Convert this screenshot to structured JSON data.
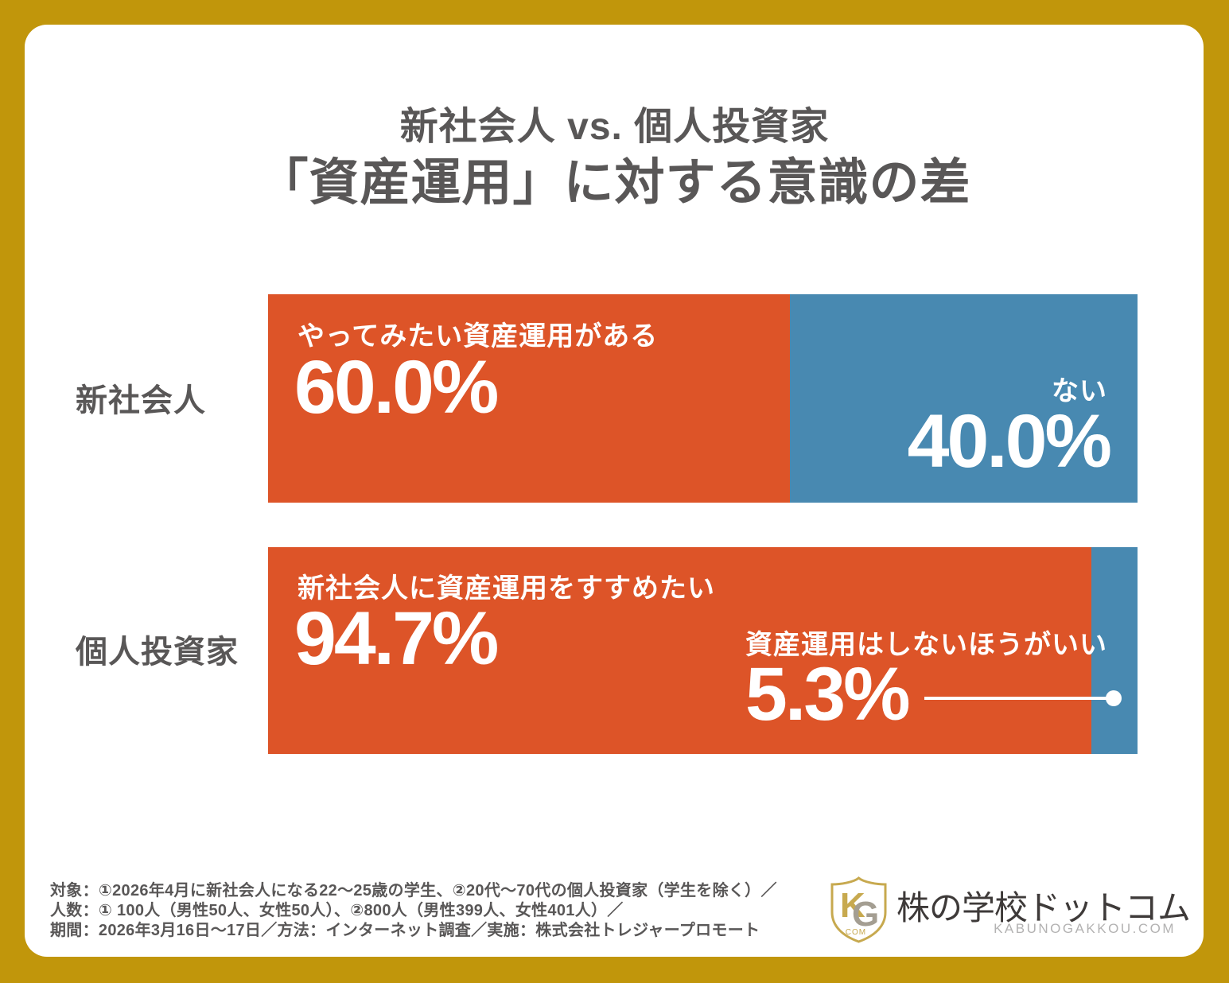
{
  "title": {
    "line1": "新社会人 vs. 個人投資家",
    "line2": "「資産運用」に対する意識の差"
  },
  "colors": {
    "frame_gold": "#C1960B",
    "card_white": "#FFFFFF",
    "orange": "#DD5428",
    "blue": "#4889B1",
    "dark_text": "#595757",
    "bar_text": "#FFFFFF",
    "logo_text": "#3E3A39",
    "logo_domain_gray": "#B3B2B2",
    "shield_gold": "#C7A94F"
  },
  "rows": [
    {
      "category": "新社会人",
      "positive": {
        "label": "やってみたい資産運用がある",
        "value": "60.0%",
        "pct": 60.0
      },
      "negative": {
        "label": "ない",
        "value": "40.0%",
        "pct": 40.0
      }
    },
    {
      "category": "個人投資家",
      "positive": {
        "label": "新社会人に資産運用をすすめたい",
        "value": "94.7%",
        "pct": 94.7
      },
      "negative": {
        "label": "資産運用はしないほうがいい",
        "value": "5.3%",
        "pct": 5.3
      }
    }
  ],
  "chart_data": {
    "type": "bar",
    "orientation": "horizontal",
    "stacked": true,
    "unit": "%",
    "title": "新社会人 vs. 個人投資家 「資産運用」に対する意識の差",
    "categories": [
      "新社会人",
      "個人投資家"
    ],
    "series": [
      {
        "name": "やってみたい資産運用がある／新社会人に資産運用をすすめたい",
        "color": "#DD5428",
        "values": [
          60.0,
          94.7
        ]
      },
      {
        "name": "ない／資産運用はしないほうがいい",
        "color": "#4889B1",
        "values": [
          40.0,
          5.3
        ]
      }
    ],
    "value_labels": [
      [
        "60.0%",
        "40.0%"
      ],
      [
        "94.7%",
        "5.3%"
      ]
    ],
    "xlim": [
      0,
      100
    ],
    "grid": false,
    "legend": "none"
  },
  "footnote": {
    "line1": "対象：①2026年4月に新社会人になる22〜25歳の学生、②20代〜70代の個人投資家（学生を除く）／",
    "line2": "人数：① 100人（男性50人、女性50人）、②800人（男性399人、女性401人）／",
    "line3": "期間：2026年3月16日〜17日／方法：インターネット調査／実施：株式会社トレジャープロモート"
  },
  "logo": {
    "name": "株の学校ドットコム",
    "domain": "KABUNOGAKKOU.COM",
    "monogram_k": "K",
    "monogram_g": "G",
    "monogram_sub": ".COM"
  }
}
